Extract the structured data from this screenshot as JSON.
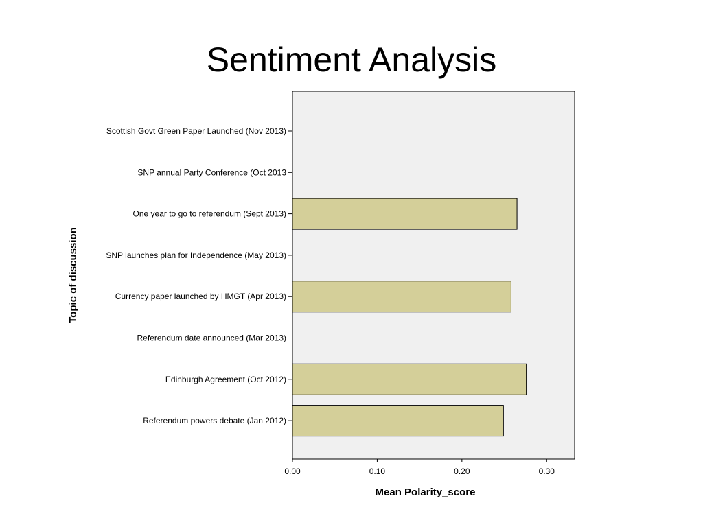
{
  "slide": {
    "title": "Sentiment Analysis"
  },
  "chart_data": {
    "type": "bar",
    "orientation": "horizontal",
    "xlabel": "Mean Polarity_score",
    "ylabel": "Topic of discussion",
    "xlim": [
      0,
      0.333
    ],
    "x_ticks": [
      "0.00",
      "0.10",
      "0.20",
      "0.30"
    ],
    "x_tick_values": [
      0,
      0.1,
      0.2,
      0.3
    ],
    "categories": [
      "Scottish Govt Green Paper Launched (Nov 2013)",
      "SNP annual Party Conference (Oct 2013",
      "One year to go to referendum (Sept 2013)",
      "SNP launches plan for Independence (May 2013)",
      "Currency paper launched by HMGT (Apr 2013)",
      "Referendum date announced (Mar 2013)",
      "Edinburgh Agreement (Oct 2012)",
      "Referendum powers debate (Jan 2012)"
    ],
    "values": [
      null,
      null,
      0.265,
      null,
      0.258,
      null,
      0.276,
      0.249
    ],
    "grid": false,
    "legend": "none",
    "colors": {
      "bar_fill": "#d4cf99",
      "bar_stroke": "#000000",
      "plot_background": "#f0f0f0"
    }
  }
}
